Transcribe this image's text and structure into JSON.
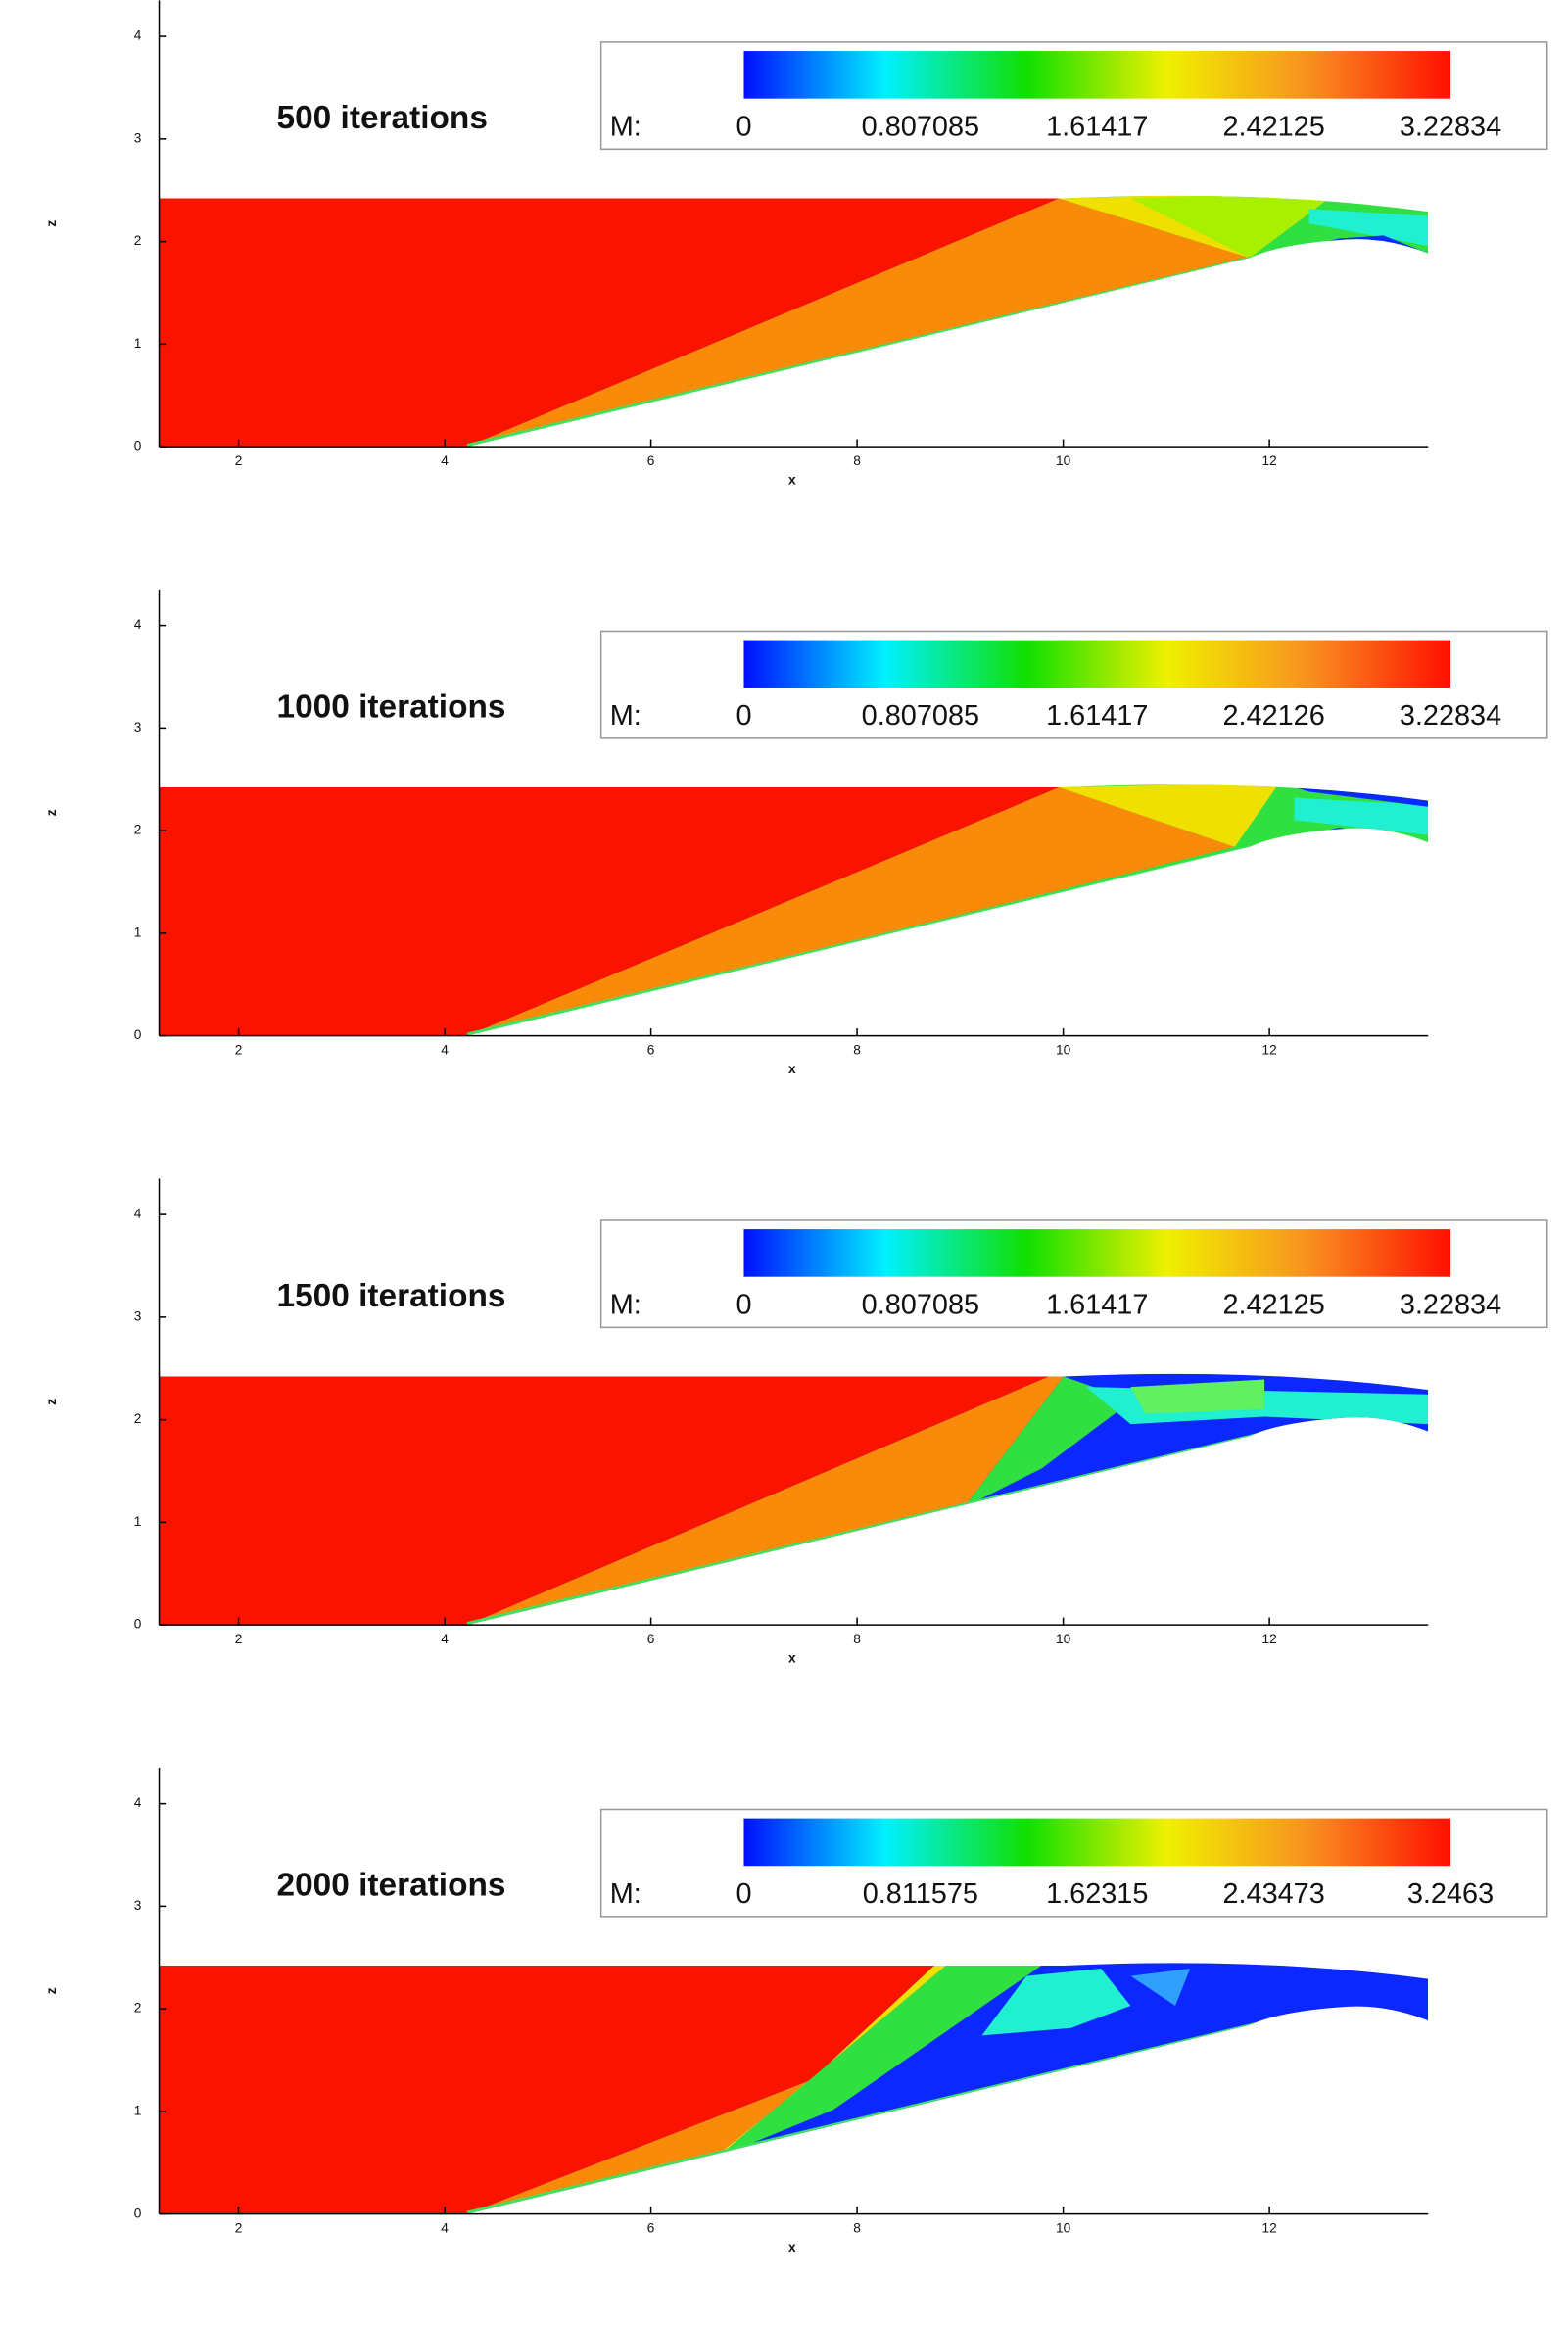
{
  "chart_data": [
    {
      "type": "contour",
      "title": "500 iterations",
      "xlabel": "x",
      "ylabel": "z",
      "xlim": [
        1.23,
        13.54
      ],
      "ylim": [
        0,
        4.35
      ],
      "xticks": [
        2,
        4,
        6,
        8,
        10,
        12
      ],
      "yticks": [
        0,
        1,
        2,
        3,
        4
      ],
      "colorbar": {
        "label": "M:",
        "lim": [
          0,
          3.22834
        ],
        "ticks": [
          0,
          0.807085,
          1.61417,
          2.42125,
          3.22834
        ],
        "colormap": [
          "#0010ff",
          "#00f0ff",
          "#10e000",
          "#f0f000",
          "#f89020",
          "#ff1000"
        ]
      }
    },
    {
      "type": "contour",
      "title": "1000 iterations",
      "xlabel": "x",
      "ylabel": "z",
      "xlim": [
        1.23,
        13.54
      ],
      "ylim": [
        0,
        4.35
      ],
      "xticks": [
        2,
        4,
        6,
        8,
        10,
        12
      ],
      "yticks": [
        0,
        1,
        2,
        3,
        4
      ],
      "colorbar": {
        "label": "M:",
        "lim": [
          0,
          3.22834
        ],
        "ticks": [
          0,
          0.807085,
          1.61417,
          2.42126,
          3.22834
        ],
        "colormap": [
          "#0010ff",
          "#00f0ff",
          "#10e000",
          "#f0f000",
          "#f89020",
          "#ff1000"
        ]
      }
    },
    {
      "type": "contour",
      "title": "1500 iterations",
      "xlabel": "x",
      "ylabel": "z",
      "xlim": [
        1.23,
        13.54
      ],
      "ylim": [
        0,
        4.35
      ],
      "xticks": [
        2,
        4,
        6,
        8,
        10,
        12
      ],
      "yticks": [
        0,
        1,
        2,
        3,
        4
      ],
      "colorbar": {
        "label": "M:",
        "lim": [
          0,
          3.22834
        ],
        "ticks": [
          0,
          0.807085,
          1.61417,
          2.42125,
          3.22834
        ],
        "colormap": [
          "#0010ff",
          "#00f0ff",
          "#10e000",
          "#f0f000",
          "#f89020",
          "#ff1000"
        ]
      }
    },
    {
      "type": "contour",
      "title": "2000 iterations",
      "xlabel": "x",
      "ylabel": "z",
      "xlim": [
        1.23,
        13.54
      ],
      "ylim": [
        0,
        4.35
      ],
      "xticks": [
        2,
        4,
        6,
        8,
        10,
        12
      ],
      "yticks": [
        0,
        1,
        2,
        3,
        4
      ],
      "colorbar": {
        "label": "M:",
        "lim": [
          0,
          3.2463
        ],
        "ticks": [
          0,
          0.811575,
          1.62315,
          2.43473,
          3.2463
        ],
        "colormap": [
          "#0010ff",
          "#00f0ff",
          "#10e000",
          "#f0f000",
          "#f89020",
          "#ff1000"
        ]
      }
    }
  ]
}
